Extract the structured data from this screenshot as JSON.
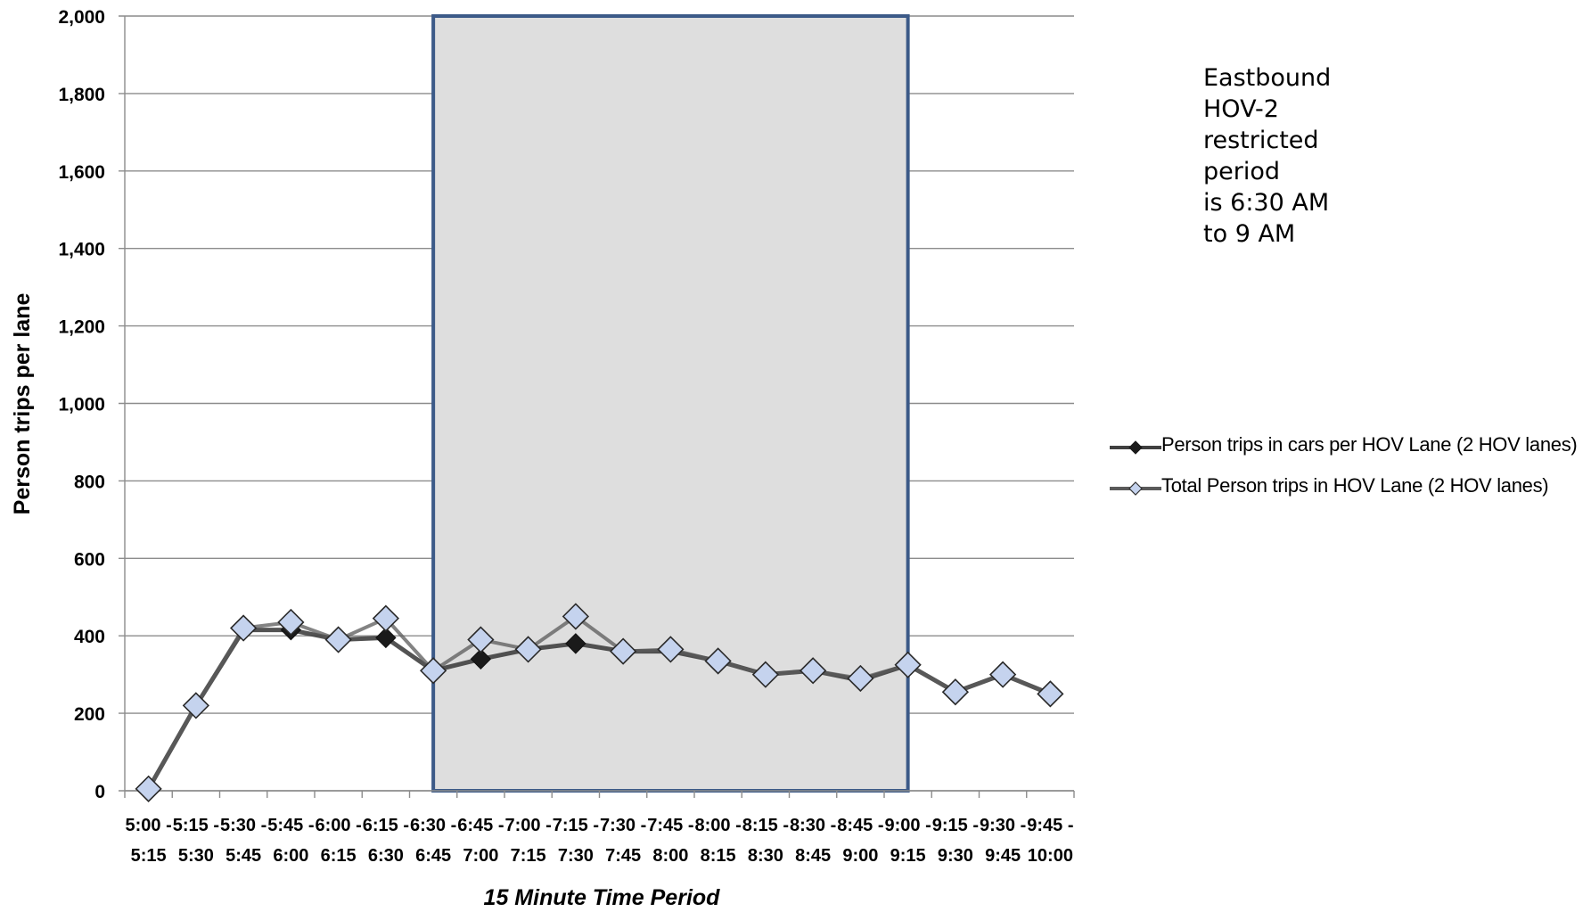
{
  "chart_data": {
    "type": "line",
    "xlabel": "15 Minute Time Period",
    "ylabel": "Person trips per lane",
    "ylim": [
      0,
      2000
    ],
    "yticks": [
      "0",
      "200",
      "400",
      "600",
      "800",
      "1,000",
      "1,200",
      "1,400",
      "1,600",
      "1,800",
      "2,000"
    ],
    "categories": [
      [
        "5:00 -",
        "5:15"
      ],
      [
        "5:15 -",
        "5:30"
      ],
      [
        "5:30 -",
        "5:45"
      ],
      [
        "5:45 -",
        "6:00"
      ],
      [
        "6:00 -",
        "6:15"
      ],
      [
        "6:15 -",
        "6:30"
      ],
      [
        "6:30 -",
        "6:45"
      ],
      [
        "6:45 -",
        "7:00"
      ],
      [
        "7:00 -",
        "7:15"
      ],
      [
        "7:15 -",
        "7:30"
      ],
      [
        "7:30 -",
        "7:45"
      ],
      [
        "7:45 -",
        "8:00"
      ],
      [
        "8:00 -",
        "8:15"
      ],
      [
        "8:15 -",
        "8:30"
      ],
      [
        "8:30 -",
        "8:45"
      ],
      [
        "8:45 -",
        "9:00"
      ],
      [
        "9:00 -",
        "9:15"
      ],
      [
        "9:15 -",
        "9:30"
      ],
      [
        "9:30 -",
        "9:45"
      ],
      [
        "9:45 -",
        "10:00"
      ]
    ],
    "series": [
      {
        "name": "Person trips in cars per HOV Lane (2 HOV lanes)",
        "values": [
          5,
          220,
          415,
          415,
          390,
          395,
          310,
          340,
          365,
          380,
          360,
          360,
          335,
          300,
          310,
          285,
          325,
          255,
          300,
          250
        ],
        "line_color": "#404040",
        "marker_color": "#1a1a1a"
      },
      {
        "name": "Total Person trips in HOV Lane (2 HOV lanes)",
        "values": [
          5,
          220,
          420,
          435,
          390,
          445,
          310,
          390,
          365,
          450,
          360,
          365,
          335,
          300,
          310,
          290,
          325,
          255,
          300,
          250
        ],
        "line_color": "#5a5a5a",
        "marker_color": "#c5d3ee"
      }
    ],
    "highlight_period": {
      "from_category": "6:30 -",
      "to_category": "9:00 -",
      "fill": "#dedede",
      "border": "#3c5a88"
    },
    "grid": true,
    "legend_position": "right"
  },
  "annotation": {
    "lines": [
      "Eastbound",
      "HOV-2",
      "restricted",
      "period",
      "is 6:30 AM",
      "to 9 AM"
    ]
  }
}
